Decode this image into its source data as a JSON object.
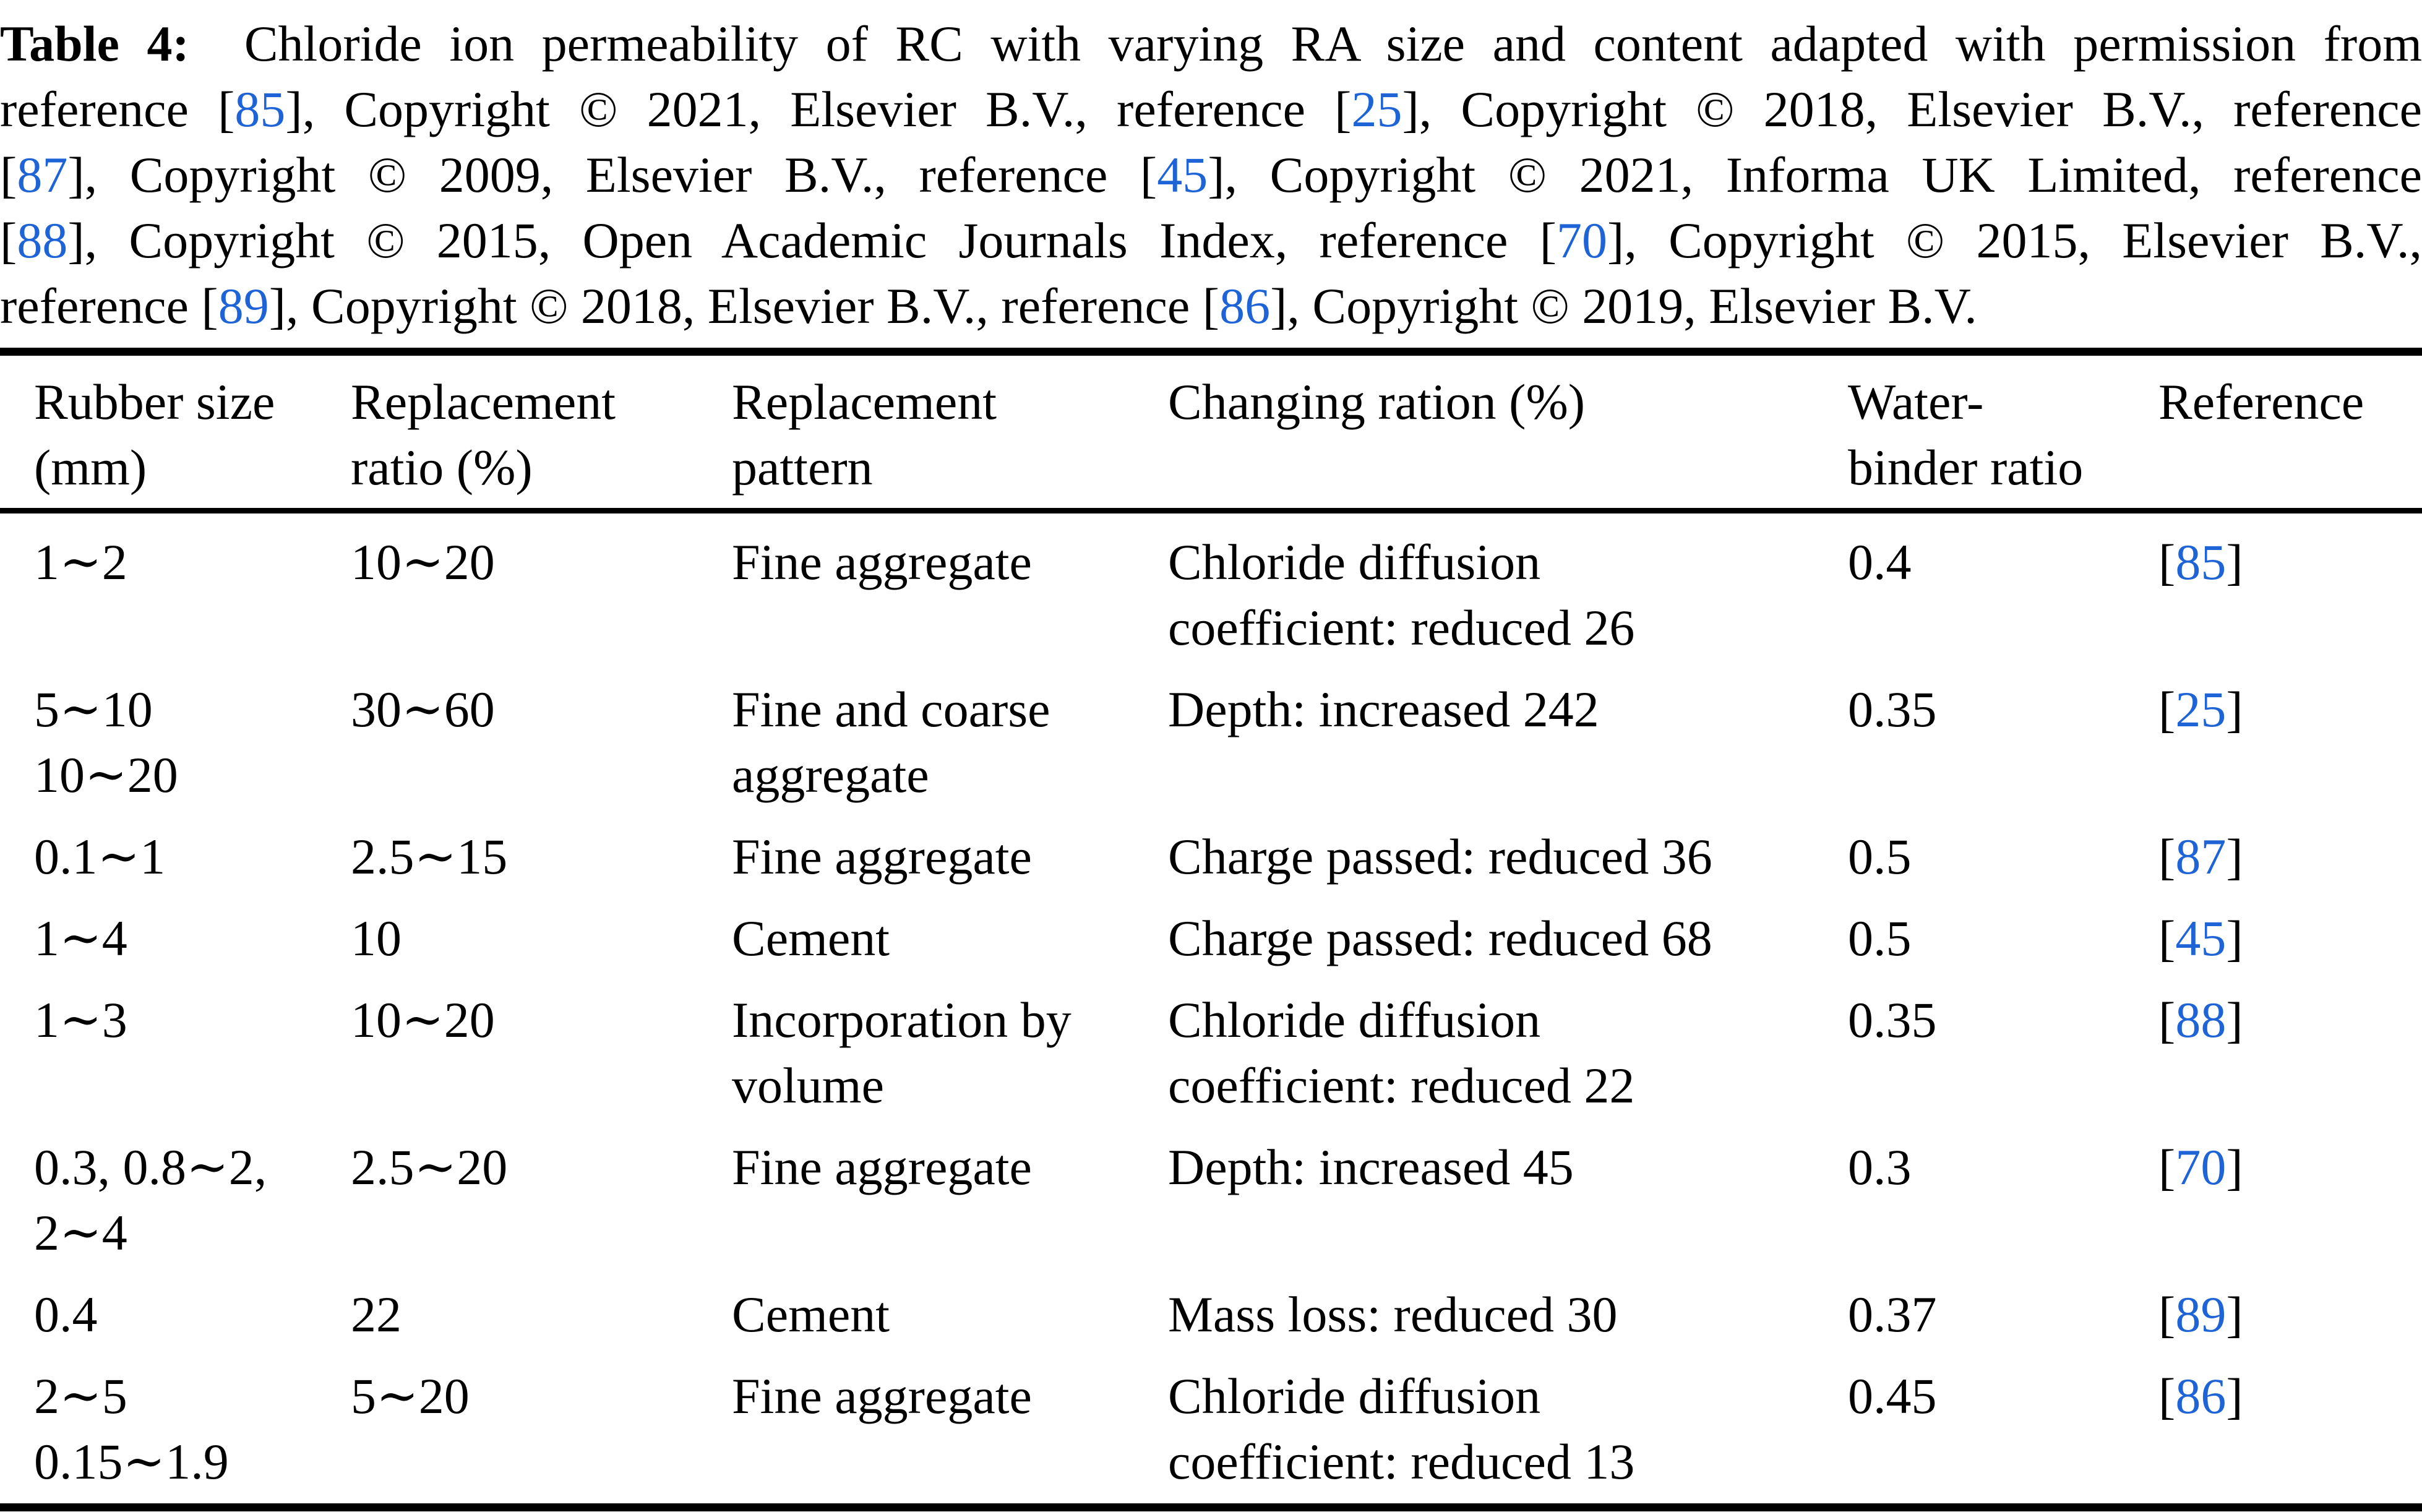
{
  "page": {
    "background": "#FFFFFF",
    "text_color": "#000000",
    "link_color": "#1E64D7"
  },
  "caption": {
    "full_text": "Table 4: Chloride ion permeability of RC with varying RA size and content adapted with permission from reference [85], Copyright © 2021, Elsevier B.V., reference [25], Copyright © 2018, Elsevier B.V., reference [87], Copyright © 2009, Elsevier B.V., reference [45], Copyright © 2021, Informa UK Limited, reference [88], Copyright © 2015, Open Academic Journals Index, reference [70], Copyright © 2015, Elsevier B.V., reference [89], Copyright © 2018, Elsevier B.V., reference [86], Copyright © 2019, Elsevier B.V.",
    "lines": [
      [
        {
          "t": "Table 4:",
          "b": true
        },
        {
          "t": "  Chloride ion permeability of RC with varying RA size and content adapted with permission from"
        }
      ],
      [
        {
          "t": "reference "
        },
        {
          "ref": "85"
        },
        {
          "t": ", Copyright © 2021, Elsevier B.V., reference "
        },
        {
          "ref": "25"
        },
        {
          "t": ", Copyright © 2018, Elsevier B.V., reference"
        }
      ],
      [
        {
          "ref": "87"
        },
        {
          "t": ", Copyright © 2009, Elsevier B.V., reference "
        },
        {
          "ref": "45"
        },
        {
          "t": ", Copyright © 2021, Informa UK Limited, reference"
        }
      ],
      [
        {
          "ref": "88"
        },
        {
          "t": ", Copyright © 2015, Open Academic Journals Index, reference "
        },
        {
          "ref": "70"
        },
        {
          "t": ", Copyright © 2015, Elsevier B.V.,"
        }
      ],
      [
        {
          "t": "reference "
        },
        {
          "ref": "89"
        },
        {
          "t": ", Copyright © 2018, Elsevier B.V., reference "
        },
        {
          "ref": "86"
        },
        {
          "t": ", Copyright © 2019, Elsevier B.V."
        }
      ]
    ]
  },
  "table": {
    "columns": [
      {
        "id": "rubber_size",
        "lines": [
          "Rubber size",
          "(mm)"
        ]
      },
      {
        "id": "replacement_ratio",
        "lines": [
          "Replacement",
          "ratio (%)"
        ]
      },
      {
        "id": "replacement_pattern",
        "lines": [
          "Replacement",
          "pattern"
        ]
      },
      {
        "id": "changing_ration",
        "lines": [
          "Changing ration (%)"
        ]
      },
      {
        "id": "water_binder_ratio",
        "lines": [
          "Water-",
          "binder ratio"
        ]
      },
      {
        "id": "reference",
        "lines": [
          "Reference"
        ]
      }
    ],
    "rows": [
      {
        "rubber_size": [
          "1∼2"
        ],
        "replacement_ratio": [
          "10∼20"
        ],
        "replacement_pattern": [
          "Fine aggregate"
        ],
        "changing_ration": [
          "Chloride diffusion",
          "coefficient: reduced 26"
        ],
        "water_binder_ratio": [
          "0.4"
        ],
        "reference": "85"
      },
      {
        "rubber_size": [
          "5∼10",
          "10∼20"
        ],
        "replacement_ratio": [
          "30∼60"
        ],
        "replacement_pattern": [
          "Fine and coarse",
          "aggregate"
        ],
        "changing_ration": [
          "Depth: increased 242"
        ],
        "water_binder_ratio": [
          "0.35"
        ],
        "reference": "25"
      },
      {
        "rubber_size": [
          "0.1∼1"
        ],
        "replacement_ratio": [
          "2.5∼15"
        ],
        "replacement_pattern": [
          "Fine aggregate"
        ],
        "changing_ration": [
          "Charge passed: reduced 36"
        ],
        "water_binder_ratio": [
          "0.5"
        ],
        "reference": "87"
      },
      {
        "rubber_size": [
          "1∼4"
        ],
        "replacement_ratio": [
          "10"
        ],
        "replacement_pattern": [
          "Cement"
        ],
        "changing_ration": [
          "Charge passed: reduced 68"
        ],
        "water_binder_ratio": [
          "0.5"
        ],
        "reference": "45"
      },
      {
        "rubber_size": [
          "1∼3"
        ],
        "replacement_ratio": [
          "10∼20"
        ],
        "replacement_pattern": [
          "Incorporation by",
          "volume"
        ],
        "changing_ration": [
          "Chloride diffusion",
          "coefficient: reduced 22"
        ],
        "water_binder_ratio": [
          "0.35"
        ],
        "reference": "88"
      },
      {
        "rubber_size": [
          "0.3, 0.8∼2,",
          "2∼4"
        ],
        "replacement_ratio": [
          "2.5∼20"
        ],
        "replacement_pattern": [
          "Fine aggregate"
        ],
        "changing_ration": [
          "Depth: increased 45"
        ],
        "water_binder_ratio": [
          "0.3"
        ],
        "reference": "70"
      },
      {
        "rubber_size": [
          "0.4"
        ],
        "replacement_ratio": [
          "22"
        ],
        "replacement_pattern": [
          "Cement"
        ],
        "changing_ration": [
          "Mass loss: reduced 30"
        ],
        "water_binder_ratio": [
          "0.37"
        ],
        "reference": "89"
      },
      {
        "rubber_size": [
          "2∼5",
          "0.15∼1.9"
        ],
        "replacement_ratio": [
          "5∼20"
        ],
        "replacement_pattern": [
          "Fine aggregate"
        ],
        "changing_ration": [
          "Chloride diffusion",
          "coefficient: reduced 13"
        ],
        "water_binder_ratio": [
          "0.45"
        ],
        "reference": "86"
      }
    ]
  }
}
